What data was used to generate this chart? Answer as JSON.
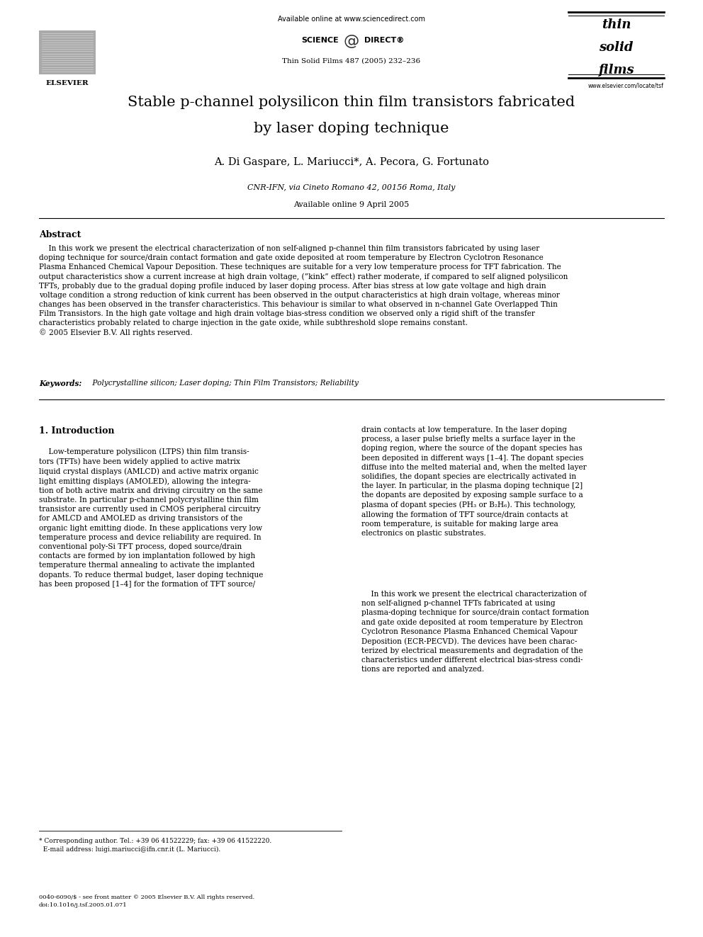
{
  "bg_color": "#ffffff",
  "page_width": 9.92,
  "page_height": 13.23,
  "header_online": "Available online at www.sciencedirect.com",
  "header_scidir_left": "SCIENCE",
  "header_scidir_right": "DIRECT®",
  "header_journal": "Thin Solid Films 487 (2005) 232–236",
  "elsevier_label": "ELSEVIER",
  "website": "www.elsevier.com/locate/tsf",
  "tsf_line1": "thin",
  "tsf_line2": "solid",
  "tsf_line3": "films",
  "title_line1": "Stable p-channel polysilicon thin film transistors fabricated",
  "title_line2": "by laser doping technique",
  "authors": "A. Di Gaspare, L. Mariucci*, A. Pecora, G. Fortunato",
  "affiliation_italic": "CNR-IFN, via Cineto Romano 42, 00156 Roma, Italy",
  "date_str": "Available online 9 April 2005",
  "abstract_label": "Abstract",
  "abstract_body": "    In this work we present the electrical characterization of non self-aligned p-channel thin film transistors fabricated by using laser\ndoping technique for source/drain contact formation and gate oxide deposited at room temperature by Electron Cyclotron Resonance\nPlasma Enhanced Chemical Vapour Deposition. These techniques are suitable for a very low temperature process for TFT fabrication. The\noutput characteristics show a current increase at high drain voltage, (”kink” effect) rather moderate, if compared to self aligned polysilicon\nTFTs, probably due to the gradual doping profile induced by laser doping process. After bias stress at low gate voltage and high drain\nvoltage condition a strong reduction of kink current has been observed in the output characteristics at high drain voltage, whereas minor\nchanges has been observed in the transfer characteristics. This behaviour is similar to what observed in n-channel Gate Overlapped Thin\nFilm Transistors. In the high gate voltage and high drain voltage bias-stress condition we observed only a rigid shift of the transfer\ncharacteristics probably related to charge injection in the gate oxide, while subthreshold slope remains constant.\n© 2005 Elsevier B.V. All rights reserved.",
  "kw_label": "Keywords:",
  "kw_body": " Polycrystalline silicon; Laser doping; Thin Film Transistors; Reliability",
  "sec1_title": "1. Introduction",
  "col1_text": "    Low-temperature polysilicon (LTPS) thin film transis-\ntors (TFTs) have been widely applied to active matrix\nliquid crystal displays (AMLCD) and active matrix organic\nlight emitting displays (AMOLED), allowing the integra-\ntion of both active matrix and driving circuitry on the same\nsubstrate. In particular p-channel polycrystalline thin film\ntransistor are currently used in CMOS peripheral circuitry\nfor AMLCD and AMOLED as driving transistors of the\norganic light emitting diode. In these applications very low\ntemperature process and device reliability are required. In\nconventional poly-Si TFT process, doped source/drain\ncontacts are formed by ion implantation followed by high\ntemperature thermal annealing to activate the implanted\ndopants. To reduce thermal budget, laser doping technique\nhas been proposed [1–4] for the formation of TFT source/",
  "col2_text1": "drain contacts at low temperature. In the laser doping\nprocess, a laser pulse briefly melts a surface layer in the\ndoping region, where the source of the dopant species has\nbeen deposited in different ways [1–4]. The dopant species\ndiffuse into the melted material and, when the melted layer\nsolidifies, the dopant species are electrically activated in\nthe layer. In particular, in the plasma doping technique [2]\nthe dopants are deposited by exposing sample surface to a\nplasma of dopant species (PH₃ or B₂H₆). This technology,\nallowing the formation of TFT source/drain contacts at\nroom temperature, is suitable for making large area\nelectronics on plastic substrates.",
  "col2_text2": "    In this work we present the electrical characterization of\nnon self-aligned p-channel TFTs fabricated at using\nplasma-doping technique for source/drain contact formation\nand gate oxide deposited at room temperature by Electron\nCyclotron Resonance Plasma Enhanced Chemical Vapour\nDeposition (ECR-PECVD). The devices have been charac-\nterized by electrical measurements and degradation of the\ncharacteristics under different electrical bias-stress condi-\ntions are reported and analyzed.",
  "footnote": "* Corresponding author. Tel.: +39 06 41522229; fax: +39 06 41522220.\n  E-mail address: luigi.mariucci@ifn.cnr.it (L. Mariucci).",
  "footer": "0040-6090/$ - see front matter © 2005 Elsevier B.V. All rights reserved.\ndoi:10.1016/j.tsf.2005.01.071"
}
